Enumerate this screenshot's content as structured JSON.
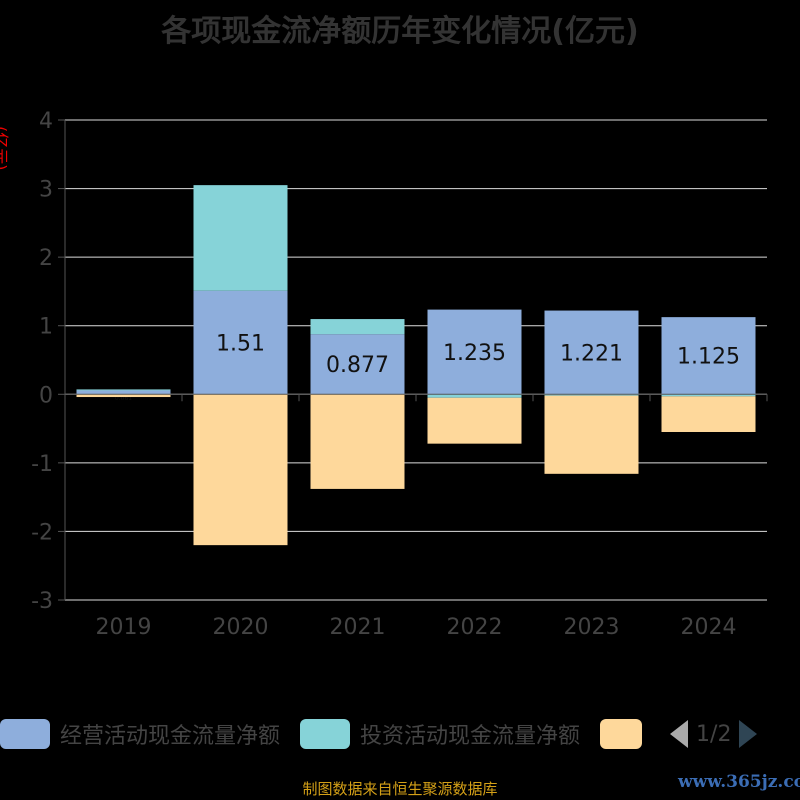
{
  "chart_data": {
    "type": "bar",
    "stacked": true,
    "title": "各项现金流净额历年变化情况(亿元)",
    "ylabel": "(亿元)",
    "categories": [
      "2019",
      "2020",
      "2021",
      "2022",
      "2023",
      "2024"
    ],
    "ylim": [
      -3,
      4
    ],
    "yticks": [
      4,
      3,
      2,
      1,
      0,
      -1,
      -2,
      -3
    ],
    "grid": true,
    "legend_position": "bottom",
    "series": [
      {
        "name": "经营活动现金流量净额",
        "color": "#8eaedc",
        "values": [
          0.061,
          1.51,
          0.877,
          1.235,
          1.221,
          1.125
        ],
        "labels": [
          "0.061",
          "1.51",
          "0.877",
          "1.235",
          "1.221",
          "1.125"
        ]
      },
      {
        "name": "投资活动现金流量净额",
        "color": "#86d3d8",
        "values": [
          0.01,
          1.54,
          0.22,
          -0.05,
          -0.02,
          -0.03
        ]
      },
      {
        "name": "",
        "color": "#fed89b",
        "values": [
          -0.04,
          -2.2,
          -1.38,
          -0.67,
          -1.14,
          -0.52
        ]
      }
    ]
  },
  "legend_pager": "1/2",
  "footer": "制图数据来自恒生聚源数据库",
  "watermark": "www.365jz.com"
}
